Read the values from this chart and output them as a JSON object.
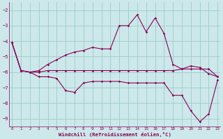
{
  "xlabel": "Windchill (Refroidissement éolien,°C)",
  "background_color": "#cde8ea",
  "line_color": "#880055",
  "grid_color": "#99cccc",
  "hours": [
    0,
    1,
    2,
    3,
    4,
    5,
    6,
    7,
    8,
    9,
    10,
    11,
    12,
    13,
    14,
    15,
    16,
    17,
    18,
    19,
    20,
    21,
    22,
    23
  ],
  "line1": [
    -4.1,
    -5.9,
    -6.0,
    -5.9,
    -5.5,
    -5.2,
    -4.9,
    -4.7,
    -4.6,
    -4.4,
    -4.5,
    -4.5,
    -3.0,
    -3.0,
    -2.3,
    -3.4,
    -2.5,
    -3.5,
    -5.5,
    -5.8,
    -5.6,
    -5.7,
    -6.1,
    -6.3
  ],
  "line2": [
    -4.1,
    -5.9,
    -6.0,
    -6.0,
    -5.9,
    -5.9,
    -5.9,
    -5.9,
    -5.9,
    -5.9,
    -5.9,
    -5.9,
    -5.9,
    -5.9,
    -5.9,
    -5.9,
    -5.9,
    -5.9,
    -5.9,
    -5.8,
    -5.8,
    -5.8,
    -5.8,
    -6.3
  ],
  "line3": [
    -4.1,
    -5.9,
    -6.0,
    -6.3,
    -6.3,
    -6.4,
    -7.2,
    -7.3,
    -6.7,
    -6.6,
    -6.6,
    -6.6,
    -6.6,
    -6.7,
    -6.7,
    -6.7,
    -6.7,
    -6.7,
    -7.5,
    -7.5,
    -8.5,
    -9.2,
    -8.7,
    -6.5
  ],
  "ylim": [
    -9.5,
    -1.5
  ],
  "yticks": [
    -9,
    -8,
    -7,
    -6,
    -5,
    -4,
    -3,
    -2
  ],
  "xlim": [
    -0.3,
    23.3
  ],
  "xticks": [
    0,
    1,
    2,
    3,
    4,
    5,
    6,
    7,
    8,
    9,
    10,
    11,
    12,
    13,
    14,
    15,
    16,
    17,
    18,
    19,
    20,
    21,
    22,
    23
  ]
}
